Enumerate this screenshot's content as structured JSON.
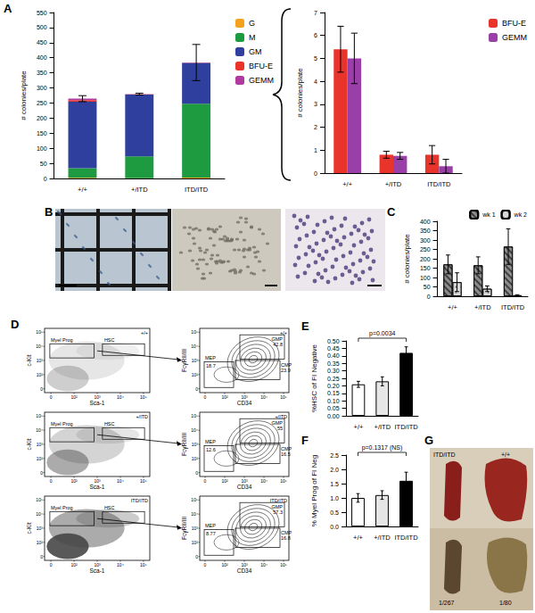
{
  "chart_data": [
    {
      "type": "bar",
      "stacked": true,
      "categories": [
        "+/+",
        "+/ITD",
        "ITD/ITD"
      ],
      "series": [
        {
          "name": "G",
          "color": "#f4a21c",
          "values": [
            2,
            1,
            3
          ]
        },
        {
          "name": "M",
          "color": "#1e9a40",
          "values": [
            32,
            72,
            245
          ]
        },
        {
          "name": "GM",
          "color": "#2e3f9e",
          "values": [
            220,
            205,
            135
          ]
        },
        {
          "name": "BFU-E",
          "color": "#e8342a",
          "values": [
            5.4,
            0.8,
            0.8
          ]
        },
        {
          "name": "GEMM",
          "color": "#b03aa0",
          "values": [
            5.0,
            0.75,
            0.3
          ]
        }
      ],
      "total_errors": [
        10,
        3,
        60
      ],
      "y_label": "# colonies/plate",
      "ylim": [
        0,
        550
      ],
      "yticks": [
        0,
        50,
        100,
        150,
        200,
        250,
        300,
        350,
        400,
        450,
        500,
        550
      ],
      "legend": "right"
    },
    {
      "type": "bar",
      "categories": [
        "+/+",
        "+/ITD",
        "ITD/ITD"
      ],
      "series": [
        {
          "name": "BFU-E",
          "color": "#e8342a",
          "values": [
            5.4,
            0.8,
            0.8
          ],
          "errors": [
            1.0,
            0.15,
            0.4
          ]
        },
        {
          "name": "GEMM",
          "color": "#9b3fa8",
          "values": [
            5.0,
            0.75,
            0.3
          ],
          "errors": [
            1.1,
            0.15,
            0.3
          ]
        }
      ],
      "y_label": "# colonies/plate",
      "ylim": [
        0,
        7
      ],
      "yticks": [
        0,
        1,
        2,
        3,
        4,
        5,
        6,
        7
      ],
      "legend": "right"
    },
    {
      "type": "bar",
      "categories": [
        "+/+",
        "+/ITD",
        "ITD/ITD"
      ],
      "series": [
        {
          "name": "wk 1",
          "color": "#8c8c8c",
          "values": [
            170,
            165,
            265
          ],
          "errors": [
            50,
            45,
            95
          ]
        },
        {
          "name": "wk 2",
          "color": "#d9d9d9",
          "values": [
            75,
            40,
            5
          ],
          "errors": [
            50,
            15,
            3
          ]
        }
      ],
      "y_label": "# colonies/plate",
      "ylim": [
        0,
        400
      ],
      "yticks": [
        0,
        50,
        100,
        150,
        200,
        250,
        300,
        350,
        400
      ],
      "legend": "top-right"
    },
    {
      "type": "bar",
      "categories": [
        "+/+",
        "+/ITD",
        "ITD/ITD"
      ],
      "values": [
        0.21,
        0.23,
        0.42
      ],
      "errors": [
        0.02,
        0.03,
        0.04
      ],
      "colors": [
        "#ffffff",
        "#e6e6e6",
        "#000000"
      ],
      "y_label": "%HSC of FI Negative",
      "annotations": [
        {
          "text": "p=0.0034",
          "between": [
            "+/+",
            "ITD/ITD"
          ]
        }
      ],
      "ylim": [
        0,
        0.5
      ],
      "yticks": [
        {
          "value": 0,
          "label": "0.00"
        },
        0.05,
        {
          "value": 0.1,
          "label": "0.10"
        },
        0.15,
        {
          "value": 0.2,
          "label": "0.20"
        },
        0.25,
        {
          "value": 0.3,
          "label": "0.30"
        },
        0.35,
        {
          "value": 0.4,
          "label": "0.40"
        },
        0.45,
        {
          "value": 0.5,
          "label": "0.50"
        }
      ]
    },
    {
      "type": "bar",
      "categories": [
        "+/+",
        "+/ITD",
        "ITD/ITD"
      ],
      "values": [
        1.0,
        1.1,
        1.6
      ],
      "errors": [
        0.15,
        0.15,
        0.3
      ],
      "colors": [
        "#ffffff",
        "#e6e6e6",
        "#000000"
      ],
      "y_label": "% Myel Prog of FI Neg",
      "annotations": [
        {
          "text": "p=0.1317 (NS)",
          "between": [
            "+/+",
            "ITD/ITD"
          ]
        }
      ],
      "ylim": [
        0,
        2.5
      ],
      "yticks": [
        {
          "value": 0,
          "label": "0.0"
        },
        0.5,
        {
          "value": 1,
          "label": "1.0"
        },
        1.5,
        {
          "value": 2,
          "label": "2.0"
        },
        2.5
      ]
    }
  ],
  "figure": {
    "panel_labels": [
      "A",
      "B",
      "C",
      "D",
      "E",
      "F",
      "G"
    ],
    "flow_rows": [
      {
        "genotype": "+/+",
        "gmp": 42.8,
        "cmp": 23.9,
        "mep": 18.7
      },
      {
        "genotype": "+/ITD",
        "gmp": 55,
        "cmp": 16.5,
        "mep": 12.6
      },
      {
        "genotype": "ITD/ITD",
        "gmp": 57.3,
        "cmp": 16.8,
        "mep": 8.77
      }
    ],
    "flow_left": {
      "x_label": "Sca-1",
      "y_label": "c-Kit",
      "gates": [
        "Myel Prog",
        "HSC"
      ]
    },
    "flow_right": {
      "x_label": "CD34",
      "y_label": "FcγRII/III",
      "gates": [
        "GMP",
        "CMP",
        "MEP"
      ]
    },
    "flow_ticks": [
      "0",
      "10²",
      "10³",
      "10⁴",
      "10⁵"
    ],
    "spleens": {
      "top": [
        "ITD/ITD",
        "+/+"
      ],
      "bottom": [
        "1/267",
        "1/80"
      ]
    }
  }
}
